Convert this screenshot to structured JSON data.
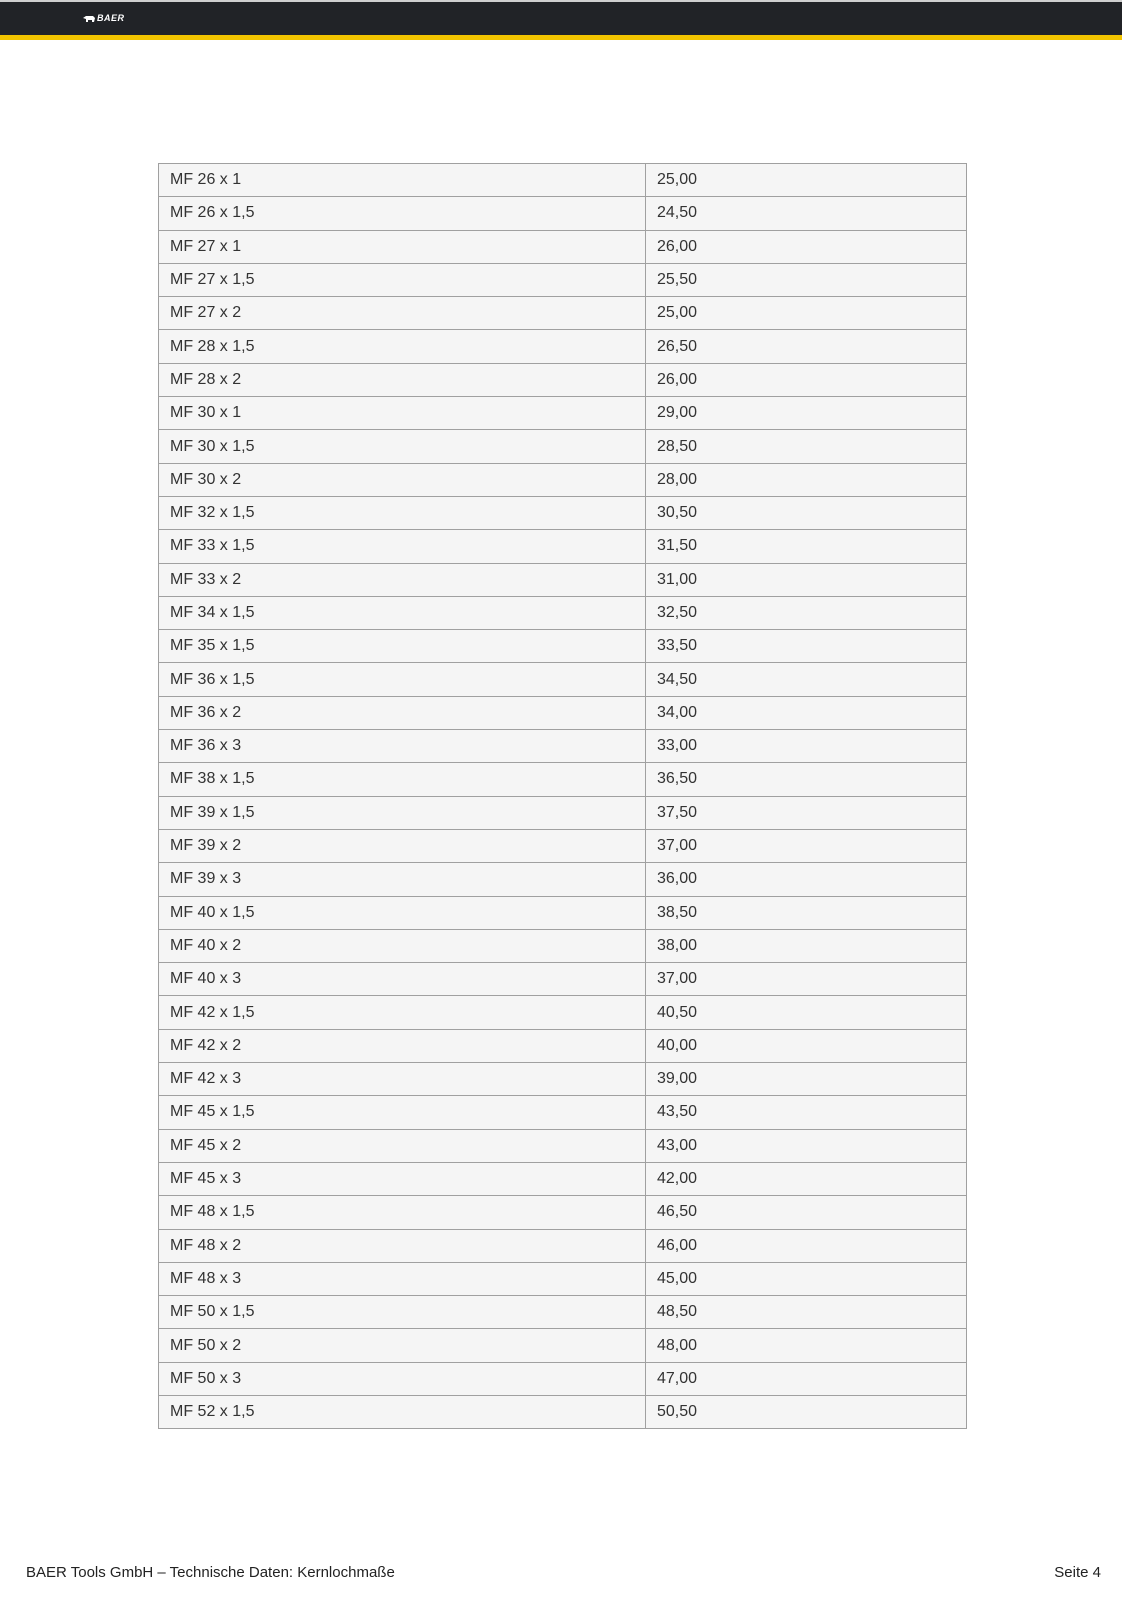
{
  "header": {
    "logo_text": "BAER",
    "bar_color": "#212327",
    "accent_color": "#f2c400"
  },
  "table": {
    "rows": [
      [
        "MF 26 x 1",
        "25,00"
      ],
      [
        "MF 26 x 1,5",
        "24,50"
      ],
      [
        "MF 27 x 1",
        "26,00"
      ],
      [
        "MF 27 x 1,5",
        "25,50"
      ],
      [
        "MF 27 x 2",
        "25,00"
      ],
      [
        "MF 28 x 1,5",
        "26,50"
      ],
      [
        "MF 28 x 2",
        "26,00"
      ],
      [
        "MF 30 x 1",
        "29,00"
      ],
      [
        "MF 30 x 1,5",
        "28,50"
      ],
      [
        "MF 30 x 2",
        "28,00"
      ],
      [
        "MF 32 x 1,5",
        "30,50"
      ],
      [
        "MF 33 x 1,5",
        "31,50"
      ],
      [
        "MF 33 x 2",
        "31,00"
      ],
      [
        "MF 34 x 1,5",
        "32,50"
      ],
      [
        "MF 35 x 1,5",
        "33,50"
      ],
      [
        "MF 36 x 1,5",
        "34,50"
      ],
      [
        "MF 36 x 2",
        "34,00"
      ],
      [
        "MF 36 x 3",
        "33,00"
      ],
      [
        "MF 38 x 1,5",
        "36,50"
      ],
      [
        "MF 39 x 1,5",
        "37,50"
      ],
      [
        "MF 39 x 2",
        "37,00"
      ],
      [
        "MF 39 x 3",
        "36,00"
      ],
      [
        "MF 40 x 1,5",
        "38,50"
      ],
      [
        "MF 40 x 2",
        "38,00"
      ],
      [
        "MF 40 x 3",
        "37,00"
      ],
      [
        "MF 42 x 1,5",
        "40,50"
      ],
      [
        "MF 42 x 2",
        "40,00"
      ],
      [
        "MF 42 x 3",
        "39,00"
      ],
      [
        "MF 45 x 1,5",
        "43,50"
      ],
      [
        "MF 45 x 2",
        "43,00"
      ],
      [
        "MF 45 x 3",
        "42,00"
      ],
      [
        "MF 48 x 1,5",
        "46,50"
      ],
      [
        "MF 48 x 2",
        "46,00"
      ],
      [
        "MF 48 x 3",
        "45,00"
      ],
      [
        "MF 50 x 1,5",
        "48,50"
      ],
      [
        "MF 50 x 2",
        "48,00"
      ],
      [
        "MF 50 x 3",
        "47,00"
      ],
      [
        "MF 52 x 1,5",
        "50,50"
      ]
    ]
  },
  "footer": {
    "left": "BAER Tools GmbH – Technische Daten: Kernlochmaße",
    "right": "Seite 4"
  }
}
